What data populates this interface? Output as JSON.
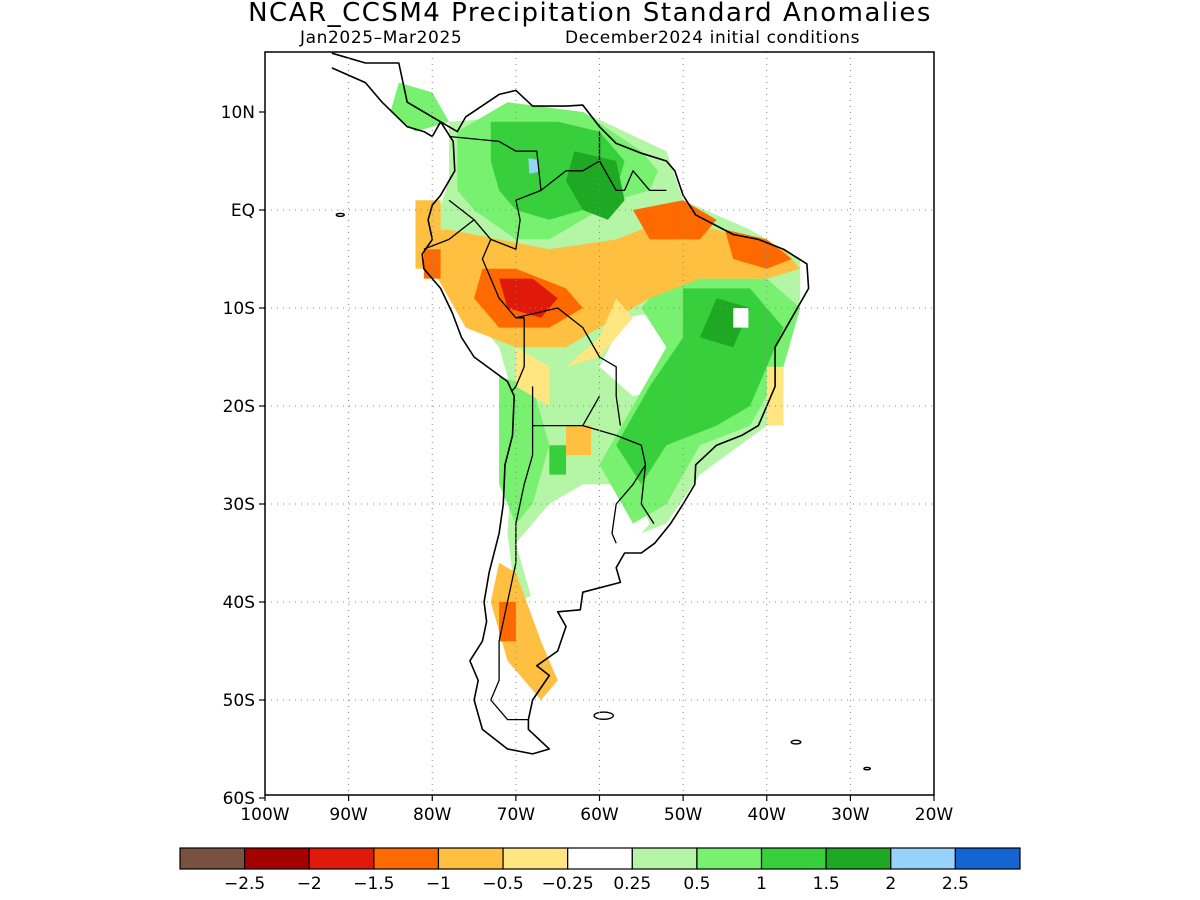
{
  "title": "NCAR_CCSM4 Precipitation Standard Anomalies",
  "subtitle_period": "Jan2025–Mar2025",
  "subtitle_init": "December2024 initial conditions",
  "map": {
    "lon_range": [
      -100,
      -20
    ],
    "lat_range": [
      -60,
      16
    ],
    "grid": "dotted",
    "lat_ticks": [
      {
        "value": 10,
        "label": "10N"
      },
      {
        "value": 0,
        "label": "EQ"
      },
      {
        "value": -10,
        "label": "10S"
      },
      {
        "value": -20,
        "label": "20S"
      },
      {
        "value": -30,
        "label": "30S"
      },
      {
        "value": -40,
        "label": "40S"
      },
      {
        "value": -50,
        "label": "50S"
      },
      {
        "value": -60,
        "label": "60S"
      }
    ],
    "lon_ticks": [
      {
        "value": -100,
        "label": "100W"
      },
      {
        "value": -90,
        "label": "90W"
      },
      {
        "value": -80,
        "label": "80W"
      },
      {
        "value": -70,
        "label": "70W"
      },
      {
        "value": -60,
        "label": "60W"
      },
      {
        "value": -50,
        "label": "50W"
      },
      {
        "value": -40,
        "label": "40W"
      },
      {
        "value": -30,
        "label": "30W"
      },
      {
        "value": -20,
        "label": "20W"
      }
    ]
  },
  "colorbar": {
    "colors": [
      "#7a5040",
      "#a50000",
      "#e01a0a",
      "#ff6a00",
      "#ffbf40",
      "#ffe680",
      "#ffffff",
      "#b4f5a6",
      "#78f070",
      "#37d03c",
      "#1ea823",
      "#96d2fa",
      "#1464d2"
    ],
    "labels": [
      "−2.5",
      "−2",
      "−1.5",
      "−1",
      "−0.5",
      "−0.25",
      "0.25",
      "0.5",
      "1",
      "1.5",
      "2",
      "2.5"
    ]
  }
}
